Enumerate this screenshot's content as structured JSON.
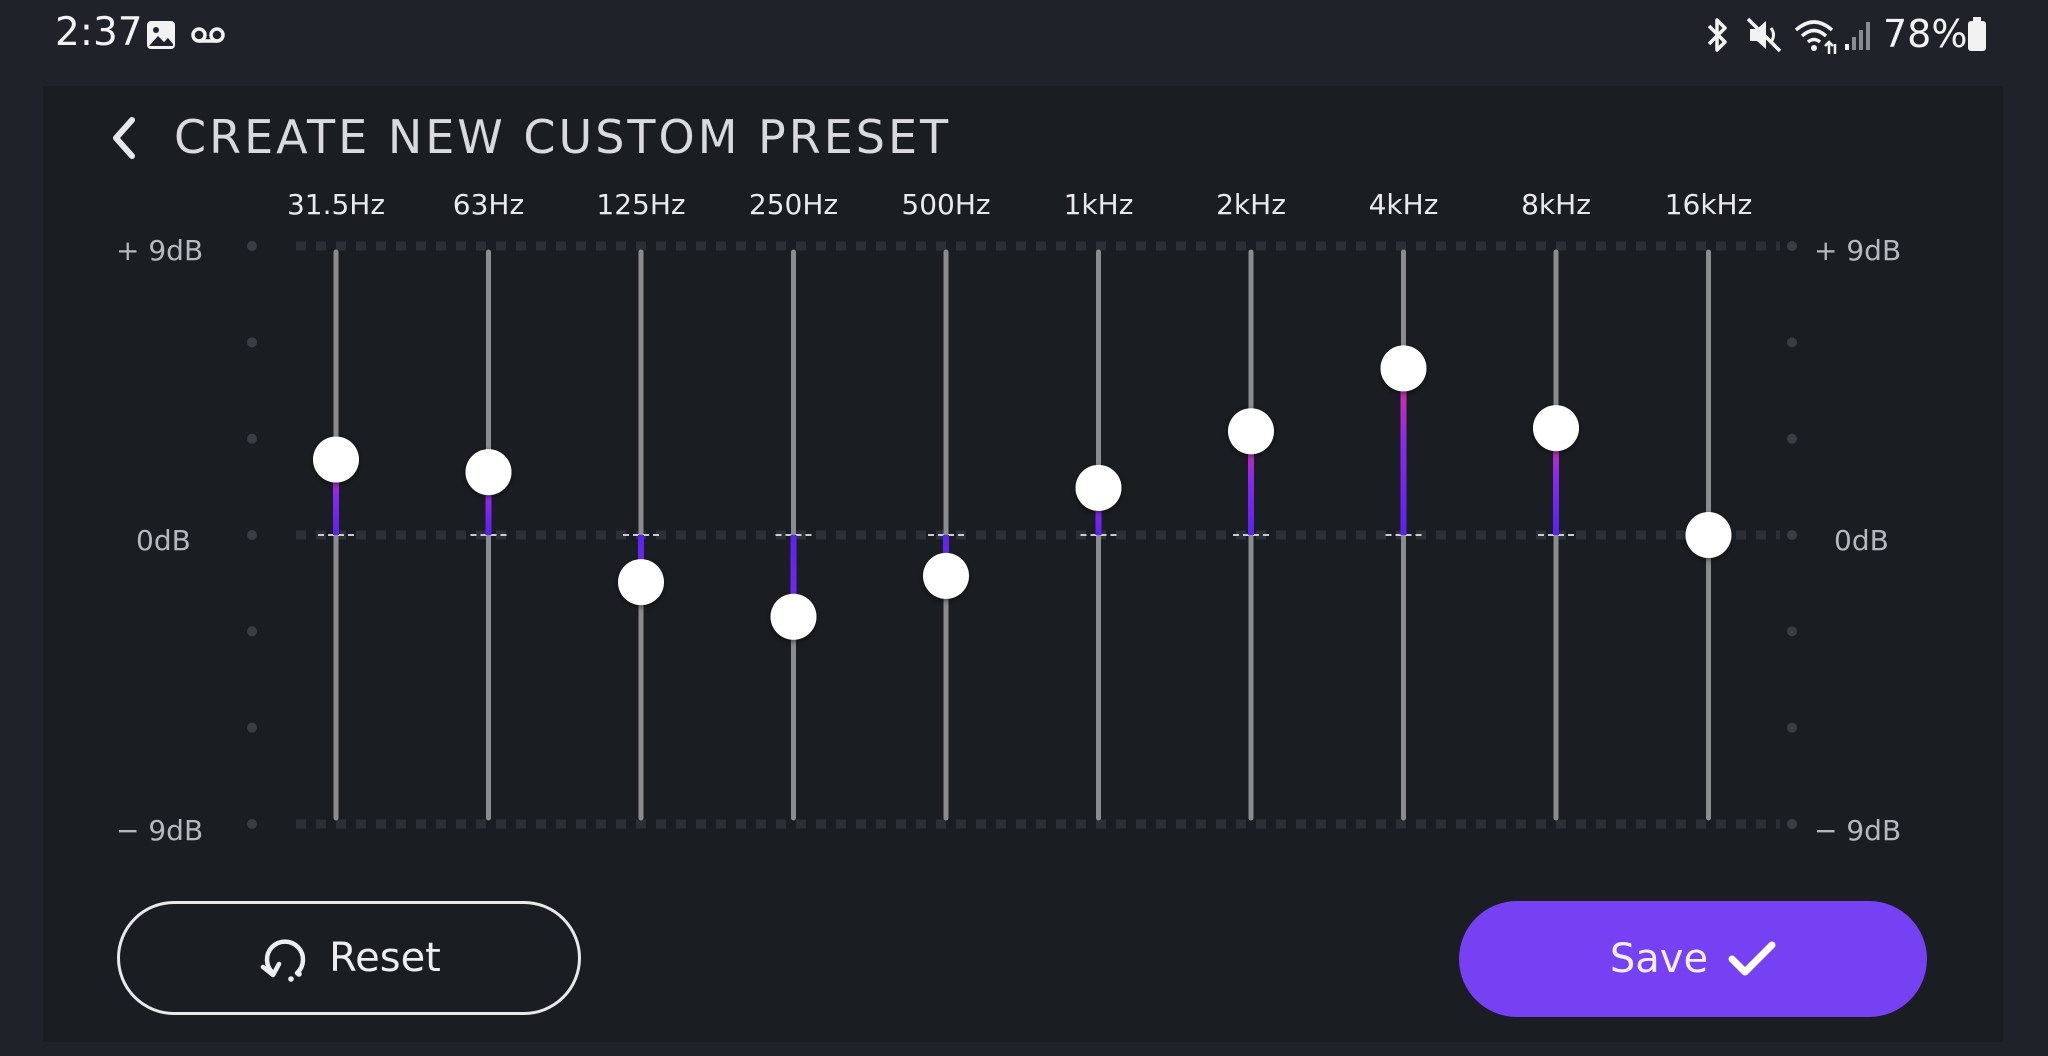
{
  "status_bar": {
    "time": "2:37",
    "battery_percent": "78%",
    "icons": [
      "image-icon",
      "voicemail-icon",
      "bluetooth-icon",
      "mute-icon",
      "wifi-icon",
      "signal-icon",
      "battery-icon"
    ]
  },
  "header": {
    "title": "CREATE NEW CUSTOM PRESET",
    "back_icon": "chevron-left-icon"
  },
  "scale": {
    "top_left": "+ 9dB",
    "mid_left": "0dB",
    "bottom_left": "− 9dB",
    "top_right": "+ 9dB",
    "mid_right": "0dB",
    "bottom_right": "− 9dB",
    "min_db": -9,
    "max_db": 9
  },
  "bands": [
    {
      "label": "31.5Hz",
      "gain_db": 2.4
    },
    {
      "label": "63Hz",
      "gain_db": 2.0
    },
    {
      "label": "125Hz",
      "gain_db": -1.5
    },
    {
      "label": "250Hz",
      "gain_db": -2.6
    },
    {
      "label": "500Hz",
      "gain_db": -1.3
    },
    {
      "label": "1kHz",
      "gain_db": 1.5
    },
    {
      "label": "2kHz",
      "gain_db": 3.3
    },
    {
      "label": "4kHz",
      "gain_db": 5.3
    },
    {
      "label": "8kHz",
      "gain_db": 3.4
    },
    {
      "label": "16kHz",
      "gain_db": 0
    }
  ],
  "colors": {
    "accent": "#7640f3",
    "fill_low": "#6a2cf0",
    "fill_high": "#e8319a",
    "track": "#8a8c90",
    "knob": "#ffffff"
  },
  "buttons": {
    "reset_label": "Reset",
    "reset_icon": "reset-icon",
    "save_label": "Save",
    "save_icon": "checkmark-icon"
  }
}
